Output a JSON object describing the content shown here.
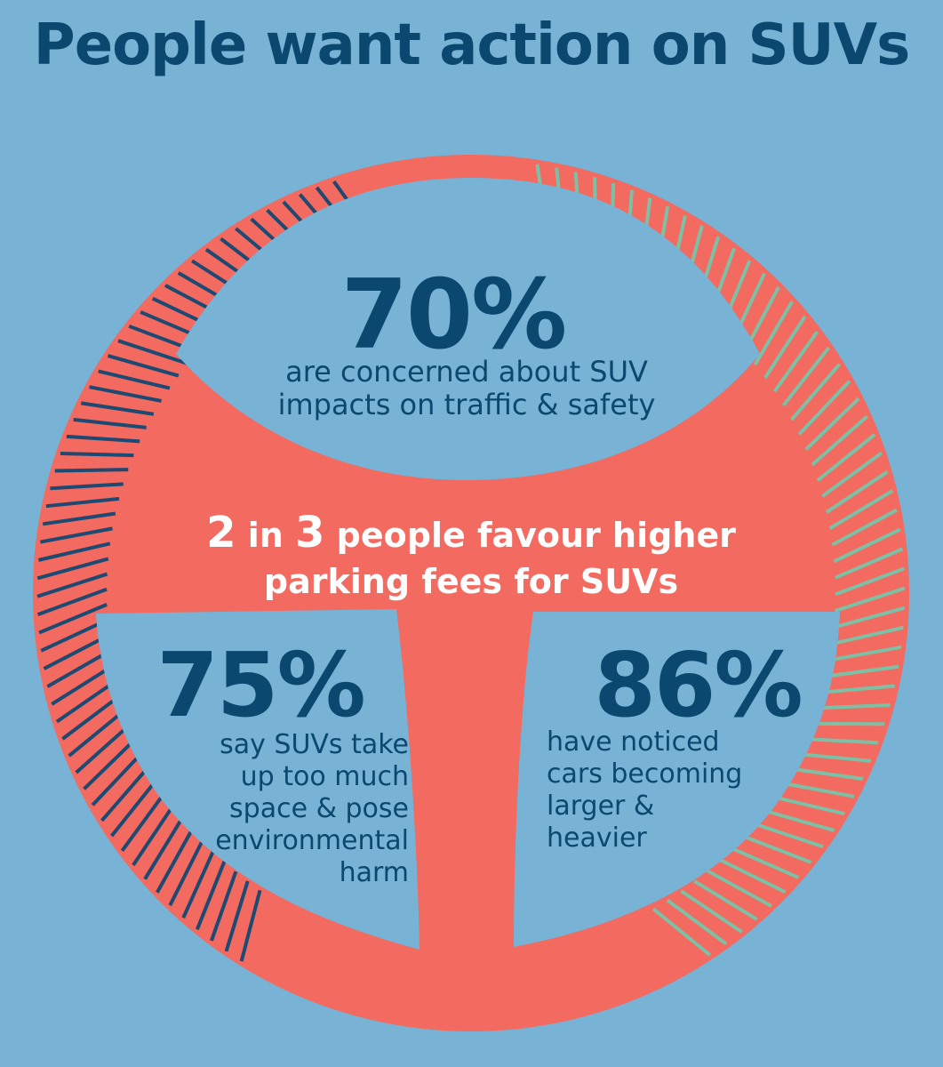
{
  "title": "People want action on SUVs",
  "headline": {
    "num1": "2",
    "mid": " in ",
    "num2": "3",
    "rest_line1": " people favour higher",
    "line2": "parking fees for SUVs"
  },
  "stats": {
    "top": {
      "value": "70%",
      "lines": [
        "are concerned about SUV",
        "impacts on traffic & safety"
      ]
    },
    "left": {
      "value": "75%",
      "lines": [
        "say SUVs take",
        "up too much",
        "space & pose",
        "environmental",
        "harm"
      ]
    },
    "right": {
      "value": "86%",
      "lines": [
        "have noticed",
        "cars becoming",
        "larger &",
        "heavier"
      ]
    }
  },
  "colors": {
    "background": "#78b2d4",
    "wheel": "#f26a60",
    "text_dark": "#0b4870",
    "text_light": "#ffffff",
    "stripe_dark": "#1c4a72",
    "stripe_green": "#7cc0a6"
  },
  "icon": "steering-wheel-icon"
}
